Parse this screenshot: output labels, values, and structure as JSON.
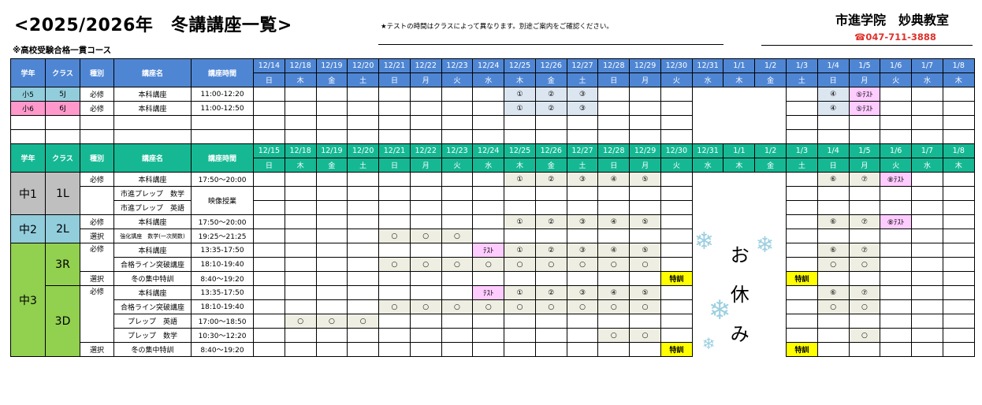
{
  "header": {
    "title": "<2025/2026年　冬講講座一覧>",
    "note": "★テストの時間はクラスによって異なります。別途ご案内をご確認ください。",
    "school": "市進学院　妙典教室",
    "phone": "☎047-711-3888",
    "course_label": "※高校受験合格一貫コース"
  },
  "columns": {
    "grade": "学年",
    "class": "クラス",
    "type": "種別",
    "name": "講座名",
    "time": "講座時間"
  },
  "days": [
    "日",
    "木",
    "金",
    "土",
    "日",
    "月",
    "火",
    "水",
    "木",
    "金",
    "土",
    "日",
    "月",
    "火",
    "水",
    "木",
    "金",
    "土",
    "日",
    "月",
    "火",
    "水",
    "木"
  ],
  "holiday_dates": [
    "12/31",
    "1/1",
    "1/2"
  ],
  "holiday_text": [
    "お",
    "休",
    "み"
  ],
  "colors": {
    "header_elem": "#4f86d4",
    "header_jhs": "#16b894",
    "fill_elem": "#dce6f1",
    "fill_jhs": "#eeeee2",
    "test": "#ffccff",
    "special": "#ffff00"
  },
  "tables": [
    {
      "dates": [
        "12/14",
        "12/18",
        "12/19",
        "12/20",
        "12/21",
        "12/22",
        "12/23",
        "12/24",
        "12/25",
        "12/26",
        "12/27",
        "12/28",
        "12/29",
        "12/30",
        "12/31",
        "1/1",
        "1/2",
        "1/3",
        "1/4",
        "1/5",
        "1/6",
        "1/7",
        "1/8"
      ],
      "grades": [
        {
          "label": "小5",
          "color": "#92cddc",
          "classes": [
            {
              "label": "5J",
              "types": [
                {
                  "label": "必修",
                  "courses": [
                    {
                      "name": "本科講座",
                      "time": "11:00-12:20",
                      "cells": {
                        "12/25": "①",
                        "12/26": "②",
                        "12/27": "③",
                        "1/4": "④",
                        "1/5": "⑤ﾃｽﾄ"
                      }
                    }
                  ]
                }
              ]
            }
          ]
        },
        {
          "label": "小6",
          "color": "#ff99cc",
          "classes": [
            {
              "label": "6J",
              "types": [
                {
                  "label": "必修",
                  "courses": [
                    {
                      "name": "本科講座",
                      "time": "11:00-12:50",
                      "cells": {
                        "12/25": "①",
                        "12/26": "②",
                        "12/27": "③",
                        "1/4": "④",
                        "1/5": "⑤ﾃｽﾄ"
                      }
                    }
                  ]
                }
              ]
            }
          ]
        },
        {
          "label": "",
          "color": "",
          "classes": [
            {
              "label": "",
              "types": [
                {
                  "label": "",
                  "courses": [
                    {
                      "name": "",
                      "time": "",
                      "cells": {}
                    }
                  ]
                }
              ]
            }
          ]
        },
        {
          "label": "",
          "color": "",
          "classes": [
            {
              "label": "",
              "types": [
                {
                  "label": "",
                  "courses": [
                    {
                      "name": "",
                      "time": "",
                      "cells": {}
                    }
                  ]
                }
              ]
            }
          ]
        }
      ]
    },
    {
      "dates": [
        "12/15",
        "12/18",
        "12/19",
        "12/20",
        "12/21",
        "12/22",
        "12/23",
        "12/24",
        "12/25",
        "12/26",
        "12/27",
        "12/28",
        "12/29",
        "12/30",
        "12/31",
        "1/1",
        "1/2",
        "1/3",
        "1/4",
        "1/5",
        "1/6",
        "1/7",
        "1/8"
      ],
      "grades": [
        {
          "label": "中1",
          "color": "#bfbfbf",
          "classes": [
            {
              "label": "1L",
              "types": [
                {
                  "label": "必修",
                  "courses": [
                    {
                      "name": "本科講座",
                      "time": "17:50～20:00",
                      "cells": {
                        "12/25": "①",
                        "12/26": "②",
                        "12/27": "③",
                        "12/28": "④",
                        "12/29": "⑤",
                        "1/4": "⑥",
                        "1/5": "⑦",
                        "1/6": "⑧ﾃｽﾄ"
                      }
                    }
                  ]
                },
                {
                  "label": "",
                  "courses": [
                    {
                      "name": "市進プレップ　数学",
                      "time": "映像授業",
                      "cells": {}
                    },
                    {
                      "name": "市進プレップ　英語",
                      "time": "映像授業",
                      "cells": {}
                    }
                  ]
                }
              ]
            }
          ]
        },
        {
          "label": "中2",
          "color": "#92cddc",
          "classes": [
            {
              "label": "2L",
              "types": [
                {
                  "label": "必修",
                  "courses": [
                    {
                      "name": "本科講座",
                      "time": "17:50～20:00",
                      "cells": {
                        "12/25": "①",
                        "12/26": "②",
                        "12/27": "③",
                        "12/28": "④",
                        "12/29": "⑤",
                        "1/4": "⑥",
                        "1/5": "⑦",
                        "1/6": "⑧ﾃｽﾄ"
                      }
                    }
                  ]
                },
                {
                  "label": "選択",
                  "courses": [
                    {
                      "name": "強化講座　数学(一次関数)",
                      "time": "19:25～21:25",
                      "cells": {
                        "12/21": "○",
                        "12/22": "○",
                        "12/23": "○"
                      }
                    }
                  ]
                }
              ]
            }
          ]
        },
        {
          "label": "中3",
          "color": "#92d050",
          "classes": [
            {
              "label": "3R",
              "types": [
                {
                  "label": "必修",
                  "courses": [
                    {
                      "name": "本科講座",
                      "time": "13:35-17:50",
                      "cells": {
                        "12/24": "ﾃｽﾄ",
                        "12/25": "①",
                        "12/26": "②",
                        "12/27": "③",
                        "12/28": "④",
                        "12/29": "⑤",
                        "1/4": "⑥",
                        "1/5": "⑦"
                      }
                    },
                    {
                      "name": "合格ライン突破講座",
                      "time": "18:10-19:40",
                      "cells": {
                        "12/21": "○",
                        "12/22": "○",
                        "12/23": "○",
                        "12/24": "○",
                        "12/25": "○",
                        "12/26": "○",
                        "12/27": "○",
                        "12/28": "○",
                        "12/29": "○",
                        "1/4": "○",
                        "1/5": "○"
                      }
                    }
                  ]
                },
                {
                  "label": "選択",
                  "courses": [
                    {
                      "name": "冬の集中特訓",
                      "time": "8:40～19:20",
                      "cells": {
                        "12/30": "特訓",
                        "1/3": "特訓"
                      }
                    }
                  ]
                }
              ]
            },
            {
              "label": "3D",
              "types": [
                {
                  "label": "必修",
                  "courses": [
                    {
                      "name": "本科講座",
                      "time": "13:35-17:50",
                      "cells": {
                        "12/24": "ﾃｽﾄ",
                        "12/25": "①",
                        "12/26": "②",
                        "12/27": "③",
                        "12/28": "④",
                        "12/29": "⑤",
                        "1/4": "⑥",
                        "1/5": "⑦"
                      }
                    },
                    {
                      "name": "合格ライン突破講座",
                      "time": "18:10-19:40",
                      "cells": {
                        "12/21": "○",
                        "12/22": "○",
                        "12/23": "○",
                        "12/24": "○",
                        "12/25": "○",
                        "12/26": "○",
                        "12/27": "○",
                        "12/28": "○",
                        "12/29": "○",
                        "1/4": "○",
                        "1/5": "○"
                      }
                    },
                    {
                      "name": "プレップ　英語",
                      "time": "17:00～18:50",
                      "cells": {
                        "12/18": "○",
                        "12/19": "○",
                        "12/20": "○"
                      }
                    },
                    {
                      "name": "プレップ　数学",
                      "time": "10:30～12:20",
                      "cells": {
                        "12/28": "○",
                        "12/29": "○",
                        "1/5": "○"
                      }
                    }
                  ]
                },
                {
                  "label": "選択",
                  "courses": [
                    {
                      "name": "冬の集中特訓",
                      "time": "8:40～19:20",
                      "cells": {
                        "12/30": "特訓",
                        "1/3": "特訓"
                      }
                    }
                  ]
                }
              ]
            }
          ]
        }
      ]
    }
  ]
}
